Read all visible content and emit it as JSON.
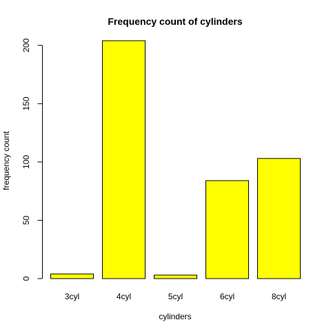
{
  "chart_data": {
    "type": "bar",
    "title": "Frequency count of cylinders",
    "xlabel": "cylinders",
    "ylabel": "frequency count",
    "categories": [
      "3cyl",
      "4cyl",
      "5cyl",
      "6cyl",
      "8cyl"
    ],
    "values": [
      4,
      204,
      3,
      84,
      103
    ],
    "ylim": [
      0,
      204
    ],
    "yticks": [
      0,
      50,
      100,
      150,
      200
    ],
    "ytick_labels": [
      "0",
      "50",
      "100",
      "150",
      "200"
    ],
    "bar_color": "#ffff00",
    "grid": false,
    "legend": "none"
  }
}
